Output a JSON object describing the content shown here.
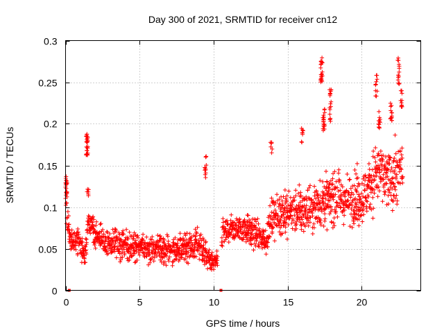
{
  "chart_data": {
    "type": "scatter",
    "title": "Day 300 of 2021, SRMTID for receiver cn12",
    "xlabel": "GPS time / hours",
    "ylabel": "SRMTID / TECUs",
    "xlim": [
      0,
      24
    ],
    "ylim": [
      0,
      0.3
    ],
    "xticks": [
      0,
      5,
      10,
      15,
      20
    ],
    "xtick_labels": [
      "0",
      "5",
      "10",
      "15",
      "20"
    ],
    "yticks": [
      0,
      0.05,
      0.1,
      0.15,
      0.2,
      0.25,
      0.3
    ],
    "ytick_labels": [
      "0",
      "0.05",
      "0.1",
      "0.15",
      "0.2",
      "0.25",
      "0.3"
    ],
    "grid": true,
    "marker": "+",
    "color": "#ff0000",
    "zero_markers_x": [
      0.25,
      10.5
    ],
    "series": [
      {
        "name": "SRMTID",
        "envelope": [
          {
            "x": 0.0,
            "center": 0.11,
            "spread": 0.03
          },
          {
            "x": 0.3,
            "center": 0.06,
            "spread": 0.015
          },
          {
            "x": 1.0,
            "center": 0.055,
            "spread": 0.02
          },
          {
            "x": 1.3,
            "center": 0.035,
            "spread": 0.02
          },
          {
            "x": 1.5,
            "center": 0.08,
            "spread": 0.02
          },
          {
            "x": 2.0,
            "center": 0.065,
            "spread": 0.02
          },
          {
            "x": 3.0,
            "center": 0.055,
            "spread": 0.022
          },
          {
            "x": 5.0,
            "center": 0.052,
            "spread": 0.018
          },
          {
            "x": 7.0,
            "center": 0.048,
            "spread": 0.02
          },
          {
            "x": 9.0,
            "center": 0.055,
            "spread": 0.022
          },
          {
            "x": 9.8,
            "center": 0.035,
            "spread": 0.015
          },
          {
            "x": 10.3,
            "center": 0.035,
            "spread": 0.012
          },
          {
            "x": 10.6,
            "center": 0.07,
            "spread": 0.02
          },
          {
            "x": 12.0,
            "center": 0.075,
            "spread": 0.02
          },
          {
            "x": 13.5,
            "center": 0.06,
            "spread": 0.02
          },
          {
            "x": 14.0,
            "center": 0.09,
            "spread": 0.03
          },
          {
            "x": 16.0,
            "center": 0.095,
            "spread": 0.03
          },
          {
            "x": 18.0,
            "center": 0.11,
            "spread": 0.032
          },
          {
            "x": 20.0,
            "center": 0.11,
            "spread": 0.035
          },
          {
            "x": 21.0,
            "center": 0.14,
            "spread": 0.04
          },
          {
            "x": 22.0,
            "center": 0.13,
            "spread": 0.04
          },
          {
            "x": 22.8,
            "center": 0.15,
            "spread": 0.04
          }
        ],
        "clusters": [
          {
            "x": 0.05,
            "y": 0.125,
            "spread": 0.012,
            "count": 18
          },
          {
            "x": 1.45,
            "y": 0.175,
            "spread": 0.013,
            "count": 26
          },
          {
            "x": 1.5,
            "y": 0.118,
            "spread": 0.005,
            "count": 6
          },
          {
            "x": 9.45,
            "y": 0.148,
            "spread": 0.013,
            "count": 12
          },
          {
            "x": 13.9,
            "y": 0.17,
            "spread": 0.008,
            "count": 6
          },
          {
            "x": 16.0,
            "y": 0.185,
            "spread": 0.01,
            "count": 8
          },
          {
            "x": 17.3,
            "y": 0.265,
            "spread": 0.015,
            "count": 22
          },
          {
            "x": 17.45,
            "y": 0.205,
            "spread": 0.015,
            "count": 20
          },
          {
            "x": 17.9,
            "y": 0.222,
            "spread": 0.02,
            "count": 18
          },
          {
            "x": 21.0,
            "y": 0.245,
            "spread": 0.015,
            "count": 10
          },
          {
            "x": 21.2,
            "y": 0.205,
            "spread": 0.01,
            "count": 12
          },
          {
            "x": 22.0,
            "y": 0.215,
            "spread": 0.012,
            "count": 14
          },
          {
            "x": 22.5,
            "y": 0.265,
            "spread": 0.018,
            "count": 14
          },
          {
            "x": 22.7,
            "y": 0.23,
            "spread": 0.01,
            "count": 10
          }
        ]
      }
    ]
  }
}
